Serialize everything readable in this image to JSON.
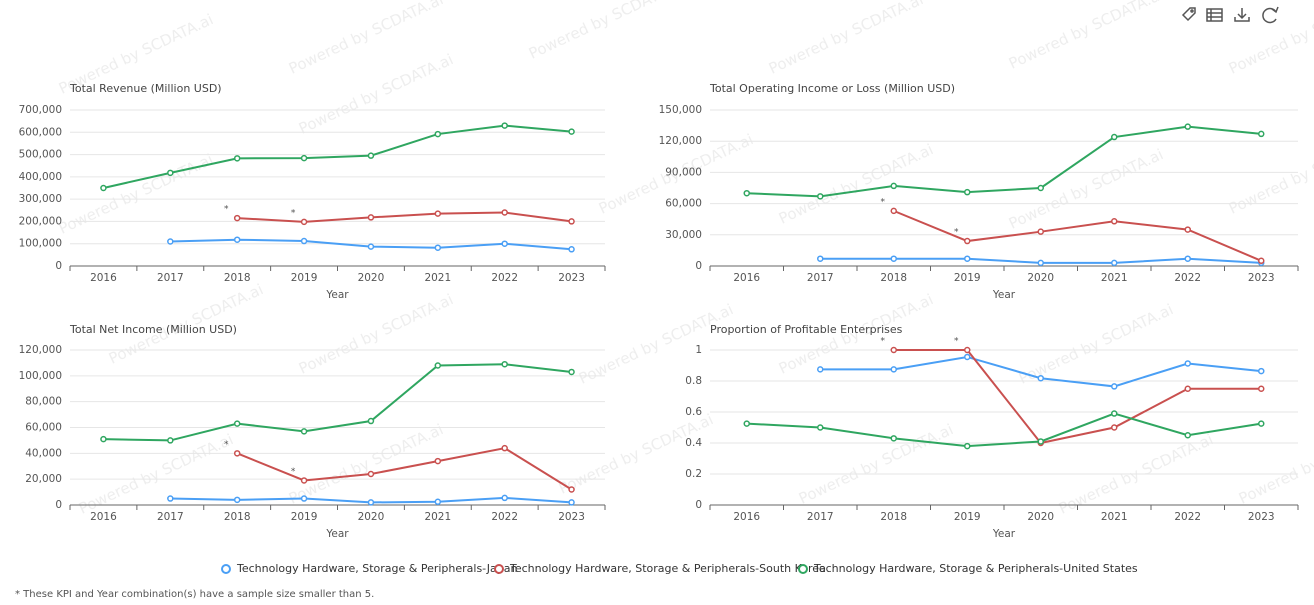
{
  "watermark": "Powered by SCDATA.ai",
  "footnote": "* These KPI and Year combination(s) have a sample size smaller than 5.",
  "chart_data": [
    {
      "type": "line",
      "title": "Total Revenue (Million USD)",
      "x_label": "Year",
      "categories": [
        "2016",
        "2017",
        "2018",
        "2019",
        "2020",
        "2021",
        "2022",
        "2023"
      ],
      "series": [
        {
          "name": "Technology Hardware, Storage & Peripherals-Japan",
          "color": "#4a9ff5",
          "values": [
            null,
            110000,
            118000,
            112000,
            87000,
            82000,
            100000,
            75000
          ]
        },
        {
          "name": "Technology Hardware, Storage & Peripherals-South Korea",
          "color": "#c9504f",
          "values": [
            null,
            null,
            215000,
            198000,
            218000,
            235000,
            240000,
            200000
          ]
        },
        {
          "name": "Technology Hardware, Storage & Peripherals-United States",
          "color": "#2fa660",
          "values": [
            350000,
            418000,
            483000,
            484000,
            495000,
            592000,
            630000,
            603000
          ]
        }
      ],
      "ylim": [
        0,
        700000
      ],
      "yticks": [
        0,
        {
          "value": 100000,
          "label": "100,000"
        },
        {
          "value": 200000,
          "label": "200,000"
        },
        {
          "value": 300000,
          "label": "300,000"
        },
        {
          "value": 400000,
          "label": "400,000"
        },
        {
          "value": 500000,
          "label": "500,000"
        },
        {
          "value": 600000,
          "label": "600,000"
        },
        {
          "value": 700000,
          "label": "700,000"
        }
      ],
      "grid": true,
      "annotations": [
        {
          "text": "*",
          "x": "2018",
          "series": 1
        },
        {
          "text": "*",
          "x": "2019",
          "series": 1
        }
      ]
    },
    {
      "type": "line",
      "title": "Total Operating Income or Loss (Million USD)",
      "x_label": "Year",
      "categories": [
        "2016",
        "2017",
        "2018",
        "2019",
        "2020",
        "2021",
        "2022",
        "2023"
      ],
      "series": [
        {
          "name": "Technology Hardware, Storage & Peripherals-Japan",
          "color": "#4a9ff5",
          "values": [
            null,
            7000,
            7000,
            7000,
            3000,
            3000,
            7000,
            3000
          ]
        },
        {
          "name": "Technology Hardware, Storage & Peripherals-South Korea",
          "color": "#c9504f",
          "values": [
            null,
            null,
            53000,
            24000,
            33000,
            43000,
            35000,
            5000
          ]
        },
        {
          "name": "Technology Hardware, Storage & Peripherals-United States",
          "color": "#2fa660",
          "values": [
            70000,
            67000,
            77000,
            71000,
            75000,
            124000,
            134000,
            127000
          ]
        }
      ],
      "ylim": [
        0,
        150000
      ],
      "yticks": [
        0,
        {
          "value": 30000,
          "label": "30,000"
        },
        {
          "value": 60000,
          "label": "60,000"
        },
        {
          "value": 90000,
          "label": "90,000"
        },
        {
          "value": 120000,
          "label": "120,000"
        },
        {
          "value": 150000,
          "label": "150,000"
        }
      ],
      "grid": true,
      "annotations": [
        {
          "text": "*",
          "x": "2018",
          "series": 1
        },
        {
          "text": "*",
          "x": "2019",
          "series": 1
        }
      ]
    },
    {
      "type": "line",
      "title": "Total Net Income (Million USD)",
      "x_label": "Year",
      "categories": [
        "2016",
        "2017",
        "2018",
        "2019",
        "2020",
        "2021",
        "2022",
        "2023"
      ],
      "series": [
        {
          "name": "Technology Hardware, Storage & Peripherals-Japan",
          "color": "#4a9ff5",
          "values": [
            null,
            5000,
            4000,
            5000,
            2000,
            2500,
            5500,
            2000
          ]
        },
        {
          "name": "Technology Hardware, Storage & Peripherals-South Korea",
          "color": "#c9504f",
          "values": [
            null,
            null,
            40000,
            19000,
            24000,
            34000,
            44000,
            12000
          ]
        },
        {
          "name": "Technology Hardware, Storage & Peripherals-United States",
          "color": "#2fa660",
          "values": [
            51000,
            50000,
            63000,
            57000,
            65000,
            108000,
            109000,
            103000
          ]
        }
      ],
      "ylim": [
        0,
        120000
      ],
      "yticks": [
        0,
        {
          "value": 20000,
          "label": "20,000"
        },
        {
          "value": 40000,
          "label": "40,000"
        },
        {
          "value": 60000,
          "label": "60,000"
        },
        {
          "value": 80000,
          "label": "80,000"
        },
        {
          "value": 100000,
          "label": "100,000"
        },
        {
          "value": 120000,
          "label": "120,000"
        }
      ],
      "grid": true,
      "annotations": [
        {
          "text": "*",
          "x": "2018",
          "series": 1
        },
        {
          "text": "*",
          "x": "2019",
          "series": 1
        }
      ]
    },
    {
      "type": "line",
      "title": "Proportion of Profitable Enterprises",
      "x_label": "Year",
      "categories": [
        "2016",
        "2017",
        "2018",
        "2019",
        "2020",
        "2021",
        "2022",
        "2023"
      ],
      "series": [
        {
          "name": "Technology Hardware, Storage & Peripherals-Japan",
          "color": "#4a9ff5",
          "values": [
            null,
            0.875,
            0.875,
            0.955,
            0.818,
            0.765,
            0.913,
            0.864
          ]
        },
        {
          "name": "Technology Hardware, Storage & Peripherals-South Korea",
          "color": "#c9504f",
          "values": [
            null,
            null,
            1,
            1,
            0.4,
            0.5,
            0.75,
            0.75
          ]
        },
        {
          "name": "Technology Hardware, Storage & Peripherals-United States",
          "color": "#2fa660",
          "values": [
            0.525,
            0.5,
            0.43,
            0.38,
            0.41,
            0.59,
            0.45,
            0.525
          ]
        }
      ],
      "ylim": [
        0,
        1
      ],
      "yticks": [
        0,
        0.2,
        0.4,
        0.6,
        0.8,
        1
      ],
      "grid": true,
      "annotations": [
        {
          "text": "*",
          "x": "2018",
          "series": 1
        },
        {
          "text": "*",
          "x": "2019",
          "series": 1
        }
      ]
    }
  ]
}
